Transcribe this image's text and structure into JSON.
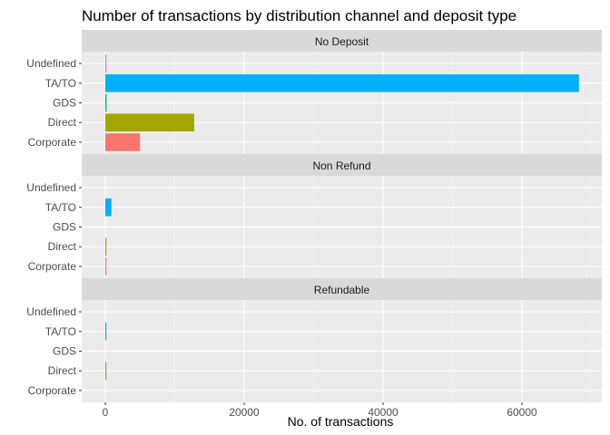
{
  "chart_data": {
    "type": "bar",
    "orientation": "horizontal",
    "title": "Number of transactions by distribution channel and deposit type",
    "xlabel": "No. of transactions",
    "ylabel": "",
    "xlim": [
      -3400,
      71500
    ],
    "x_ticks": [
      0,
      20000,
      40000,
      60000
    ],
    "x_tick_labels": [
      "0",
      "20000",
      "40000",
      "60000"
    ],
    "categories": [
      "Corporate",
      "Direct",
      "GDS",
      "TA/TO",
      "Undefined"
    ],
    "category_colors": {
      "Corporate": "#F8766D",
      "Direct": "#A3A500",
      "GDS": "#00BF7D",
      "TA/TO": "#00B0F6",
      "Undefined": "#E76BF3"
    },
    "legend": "none",
    "grid": true,
    "facets": [
      {
        "name": "No Deposit",
        "values": {
          "Corporate": 5000,
          "Direct": 12800,
          "GDS": 190,
          "TA/TO": 68200,
          "Undefined": 5
        }
      },
      {
        "name": "Non Refund",
        "values": {
          "Corporate": 160,
          "Direct": 100,
          "GDS": 0,
          "TA/TO": 880,
          "Undefined": 0
        }
      },
      {
        "name": "Refundable",
        "values": {
          "Corporate": 0,
          "Direct": 50,
          "GDS": 0,
          "TA/TO": 110,
          "Undefined": 0
        }
      }
    ]
  }
}
